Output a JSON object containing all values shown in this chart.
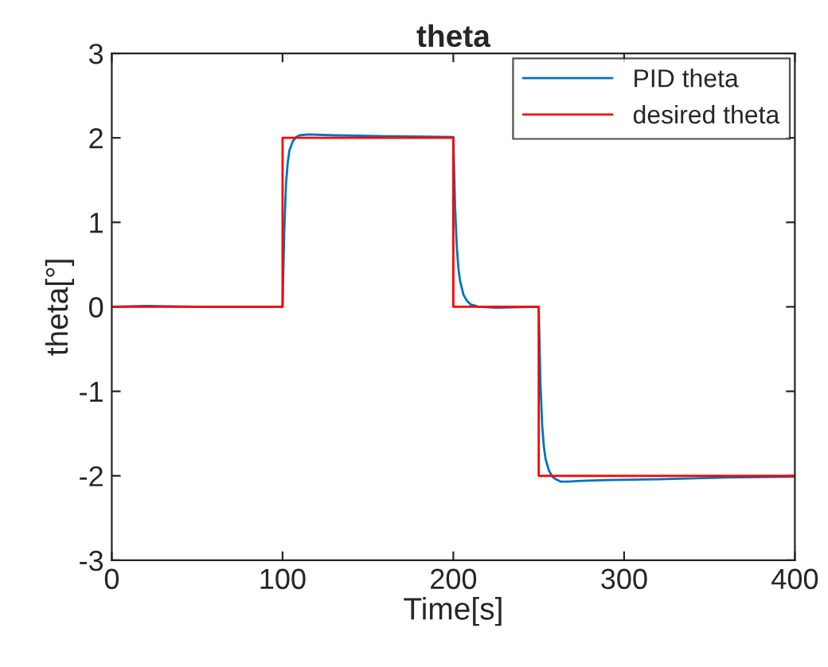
{
  "chart_data": {
    "type": "line",
    "title": "theta",
    "xlabel": "Time[s]",
    "ylabel": "theta[°]",
    "xlim": [
      0,
      400
    ],
    "xticks": [
      0,
      100,
      200,
      300,
      400
    ],
    "ylim": [
      -3,
      3
    ],
    "yticks": [
      -3,
      -2,
      -1,
      0,
      1,
      2,
      3
    ],
    "grid": false,
    "legend": "top right",
    "series": [
      {
        "name": "PID theta",
        "color": "#0072bd",
        "x": [
          0,
          20,
          50,
          100,
          101,
          102,
          103,
          104,
          106,
          108,
          110,
          115,
          130,
          160,
          200,
          201,
          202,
          203,
          204,
          206,
          208,
          210,
          215,
          225,
          250,
          251,
          252,
          253,
          254,
          256,
          258,
          260,
          263,
          267,
          275,
          290,
          320,
          360,
          400
        ],
        "values": [
          0,
          0.01,
          0,
          0,
          0.9,
          1.45,
          1.7,
          1.85,
          1.96,
          2.01,
          2.03,
          2.04,
          2.03,
          2.02,
          2.01,
          1.2,
          0.72,
          0.45,
          0.3,
          0.14,
          0.07,
          0.03,
          0,
          -0.01,
          0,
          -0.9,
          -1.4,
          -1.65,
          -1.8,
          -1.94,
          -2.01,
          -2.04,
          -2.07,
          -2.07,
          -2.06,
          -2.05,
          -2.04,
          -2.02,
          -2.01
        ]
      },
      {
        "name": "desired theta",
        "color": "#ff0000",
        "x": [
          0,
          100,
          100,
          200,
          200,
          250,
          250,
          400
        ],
        "values": [
          0,
          0,
          2,
          2,
          0,
          0,
          -2,
          -2
        ]
      }
    ]
  }
}
